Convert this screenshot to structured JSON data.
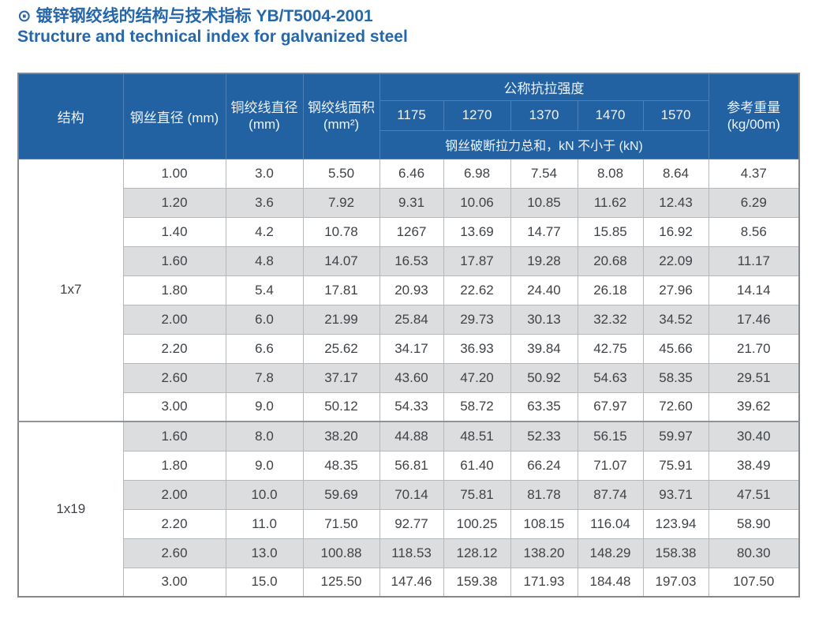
{
  "header": {
    "bullet": "⊙",
    "title_zh": "镀锌钢绞线的结构与技术指标 YB/T5004-2001",
    "title_en": "Structure and technical index for galvanized steel"
  },
  "colors": {
    "title_blue": "#2667a9",
    "header_blue": "#2262a2",
    "header_border": "#4d80b5",
    "stripe_gray": "#dcddde",
    "cell_border": "#b6b9bc",
    "outer_border": "#83878b",
    "body_text": "#3f4347"
  },
  "table": {
    "col_headers": {
      "structure": "结构",
      "wire_diameter": "钢丝直径 (mm)",
      "strand_diameter": "铜绞线直径\n(mm)",
      "strand_area": "钢绞线面积\n(mm²)",
      "tensile_strength_group": "公称抗拉强度",
      "tensile_grades": [
        "1175",
        "1270",
        "1370",
        "1470",
        "1570"
      ],
      "breaking_force_note": "钢丝破断拉力总和，kN 不小于 (kN)",
      "reference_weight": "参考重量\n(kg/00m)"
    },
    "groups": [
      {
        "structure": "1x7",
        "rows": [
          [
            "1.00",
            "3.0",
            "5.50",
            "6.46",
            "6.98",
            "7.54",
            "8.08",
            "8.64",
            "4.37"
          ],
          [
            "1.20",
            "3.6",
            "7.92",
            "9.31",
            "10.06",
            "10.85",
            "11.62",
            "12.43",
            "6.29"
          ],
          [
            "1.40",
            "4.2",
            "10.78",
            "1267",
            "13.69",
            "14.77",
            "15.85",
            "16.92",
            "8.56"
          ],
          [
            "1.60",
            "4.8",
            "14.07",
            "16.53",
            "17.87",
            "19.28",
            "20.68",
            "22.09",
            "11.17"
          ],
          [
            "1.80",
            "5.4",
            "17.81",
            "20.93",
            "22.62",
            "24.40",
            "26.18",
            "27.96",
            "14.14"
          ],
          [
            "2.00",
            "6.0",
            "21.99",
            "25.84",
            "29.73",
            "30.13",
            "32.32",
            "34.52",
            "17.46"
          ],
          [
            "2.20",
            "6.6",
            "25.62",
            "34.17",
            "36.93",
            "39.84",
            "42.75",
            "45.66",
            "21.70"
          ],
          [
            "2.60",
            "7.8",
            "37.17",
            "43.60",
            "47.20",
            "50.92",
            "54.63",
            "58.35",
            "29.51"
          ],
          [
            "3.00",
            "9.0",
            "50.12",
            "54.33",
            "58.72",
            "63.35",
            "67.97",
            "72.60",
            "39.62"
          ]
        ]
      },
      {
        "structure": "1x19",
        "rows": [
          [
            "1.60",
            "8.0",
            "38.20",
            "44.88",
            "48.51",
            "52.33",
            "56.15",
            "59.97",
            "30.40"
          ],
          [
            "1.80",
            "9.0",
            "48.35",
            "56.81",
            "61.40",
            "66.24",
            "71.07",
            "75.91",
            "38.49"
          ],
          [
            "2.00",
            "10.0",
            "59.69",
            "70.14",
            "75.81",
            "81.78",
            "87.74",
            "93.71",
            "47.51"
          ],
          [
            "2.20",
            "11.0",
            "71.50",
            "92.77",
            "100.25",
            "108.15",
            "116.04",
            "123.94",
            "58.90"
          ],
          [
            "2.60",
            "13.0",
            "100.88",
            "118.53",
            "128.12",
            "138.20",
            "148.29",
            "158.38",
            "80.30"
          ],
          [
            "3.00",
            "15.0",
            "125.50",
            "147.46",
            "159.38",
            "171.93",
            "184.48",
            "197.03",
            "107.50"
          ]
        ]
      }
    ]
  }
}
